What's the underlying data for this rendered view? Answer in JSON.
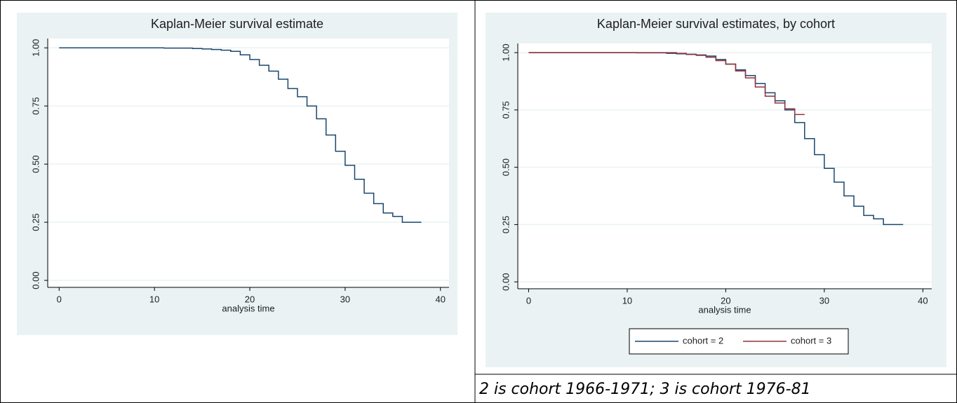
{
  "chart_data": [
    {
      "type": "step",
      "title": "Kaplan-Meier survival estimate",
      "x_label": "analysis time",
      "xlim": [
        -1.2,
        40.9
      ],
      "ylim": [
        -0.03,
        1.04
      ],
      "xticks": [
        0,
        10,
        20,
        30,
        40
      ],
      "yticks": [
        {
          "value": 0,
          "label": "0.00"
        },
        {
          "value": 0.25,
          "label": "0.25"
        },
        {
          "value": 0.5,
          "label": "0.50"
        },
        {
          "value": 0.75,
          "label": "0.75"
        },
        {
          "value": 1,
          "label": "1.00"
        }
      ],
      "grid": true,
      "series": [
        {
          "color": "#1a476f",
          "x": [
            0,
            11,
            14,
            15,
            16,
            17,
            18,
            19,
            20,
            21,
            22,
            23,
            24,
            25,
            26,
            27,
            28,
            29,
            30,
            31,
            32,
            33,
            34,
            35,
            36,
            38
          ],
          "values": [
            1,
            0.999,
            0.997,
            0.995,
            0.993,
            0.99,
            0.985,
            0.97,
            0.95,
            0.925,
            0.9,
            0.865,
            0.825,
            0.79,
            0.75,
            0.695,
            0.625,
            0.555,
            0.495,
            0.435,
            0.375,
            0.33,
            0.29,
            0.275,
            0.25,
            0.25
          ]
        }
      ]
    },
    {
      "type": "step",
      "title": "Kaplan-Meier survival estimates, by cohort",
      "x_label": "analysis time",
      "xlim": [
        -1.1,
        40.9
      ],
      "ylim": [
        -0.03,
        1.04
      ],
      "xticks": [
        0,
        10,
        20,
        30,
        40
      ],
      "yticks": [
        {
          "value": 0,
          "label": "0.00"
        },
        {
          "value": 0.25,
          "label": "0.25"
        },
        {
          "value": 0.5,
          "label": "0.50"
        },
        {
          "value": 0.75,
          "label": "0.75"
        },
        {
          "value": 1,
          "label": "1.00"
        }
      ],
      "grid": true,
      "legend": "bottom",
      "series": [
        {
          "name": "cohort = 2",
          "color": "#1a476f",
          "x": [
            0,
            11,
            14,
            15,
            16,
            17,
            18,
            19,
            20,
            21,
            22,
            23,
            24,
            25,
            26,
            27,
            28,
            29,
            30,
            31,
            32,
            33,
            34,
            35,
            36,
            38
          ],
          "values": [
            1,
            0.999,
            0.997,
            0.995,
            0.993,
            0.99,
            0.985,
            0.97,
            0.95,
            0.925,
            0.9,
            0.865,
            0.825,
            0.79,
            0.75,
            0.695,
            0.625,
            0.555,
            0.495,
            0.435,
            0.375,
            0.33,
            0.29,
            0.275,
            0.25,
            0.25
          ]
        },
        {
          "name": "cohort = 3",
          "color": "#90353b",
          "x": [
            0,
            15,
            16,
            17,
            18,
            19,
            20,
            21,
            22,
            23,
            24,
            25,
            26,
            27,
            28
          ],
          "values": [
            1,
            0.997,
            0.992,
            0.988,
            0.98,
            0.965,
            0.95,
            0.92,
            0.89,
            0.85,
            0.81,
            0.78,
            0.755,
            0.73,
            0.73
          ]
        }
      ]
    }
  ],
  "caption": "2 is cohort 1966-1971; 3 is cohort 1976-81"
}
